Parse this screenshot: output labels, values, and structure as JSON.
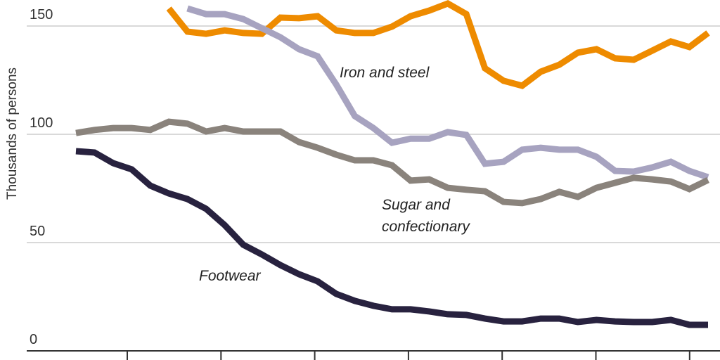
{
  "chart_data": {
    "type": "line",
    "title": "",
    "xlabel": "",
    "ylabel": "Thousands of persons",
    "ylim": [
      0,
      162
    ],
    "yticks": [
      0,
      50,
      100,
      150
    ],
    "ytick_labels": [
      "0",
      "50",
      "100",
      "150"
    ],
    "grid": true,
    "x": [
      0,
      1,
      2,
      3,
      4,
      5,
      6,
      7,
      8,
      9,
      10,
      11,
      12,
      13,
      14,
      15,
      16,
      17,
      18,
      19,
      20,
      21,
      22,
      23,
      24,
      25,
      26,
      27,
      28,
      29,
      30,
      31,
      32,
      33,
      34
    ],
    "series": [
      {
        "color": "#ee8b00",
        "values": [
          null,
          null,
          null,
          null,
          null,
          158.1,
          147.4,
          146.4,
          148,
          146.8,
          146.4,
          153.9,
          153.6,
          154.5,
          148,
          146.8,
          146.8,
          149.7,
          154.5,
          157.1,
          160.4,
          155.5,
          130.5,
          124.7,
          122.4,
          128.9,
          132.1,
          137.7,
          139.3,
          135.1,
          134.4,
          138.6,
          142.9,
          140.3,
          146.8
        ]
      },
      {
        "name": "Iron and steel",
        "color": "#a7a3c0",
        "values": [
          null,
          null,
          null,
          null,
          null,
          null,
          158.1,
          155.5,
          155.5,
          153.2,
          149,
          144.8,
          139.3,
          136,
          123,
          108.4,
          102.9,
          96.1,
          98,
          98,
          101,
          99.7,
          86.4,
          87.3,
          92.9,
          93.8,
          92.9,
          92.9,
          89.6,
          83.1,
          82.8,
          84.7,
          87.3,
          83.1,
          80.2
        ]
      },
      {
        "name": "Sugar and confectionary",
        "name_lines": [
          "Sugar and",
          "confectionary"
        ],
        "color": "#8a837c",
        "values": [
          100.6,
          102,
          102.9,
          102.9,
          102,
          105.8,
          104.9,
          101.3,
          102.9,
          101.3,
          101.3,
          101.3,
          96.4,
          93.8,
          90.6,
          88,
          88,
          85.7,
          78.6,
          79.2,
          75.3,
          74.4,
          73.7,
          68.8,
          68.2,
          70.1,
          73.4,
          71.1,
          75.3,
          77.6,
          79.9,
          79.2,
          78.2,
          74.7,
          78.9
        ]
      },
      {
        "name": "Footwear",
        "color": "#28223f",
        "values": [
          92.2,
          91.6,
          86.7,
          83.8,
          76.3,
          72.7,
          70.1,
          65.6,
          58.1,
          49.0,
          44.5,
          39.6,
          35.4,
          32.1,
          26.3,
          23.1,
          20.8,
          19.2,
          19.2,
          18.2,
          16.9,
          16.6,
          14.9,
          13.6,
          13.6,
          14.9,
          14.9,
          13.3,
          14.3,
          13.6,
          13.3,
          13.3,
          14.3,
          12.0,
          12.0
        ]
      }
    ]
  }
}
